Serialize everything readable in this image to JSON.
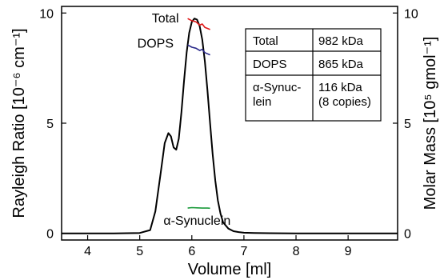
{
  "chart_data": {
    "type": "line",
    "xlabel": "Volume [ml]",
    "ylabel_left": "Rayleigh Ratio [10⁻⁶ cm⁻¹]",
    "ylabel_right": "Molar Mass [10⁵ gmol⁻¹]",
    "xlim": [
      3.5,
      9.95
    ],
    "ylim_left": [
      -0.3,
      10.3
    ],
    "ylim_right": [
      -0.3,
      10.3
    ],
    "x_ticks": [
      "4",
      "5",
      "6",
      "7",
      "8",
      "9"
    ],
    "y_ticks_left": [
      "0",
      "5",
      "10"
    ],
    "y_ticks_right": [
      "0",
      "5",
      "10"
    ],
    "series": [
      {
        "name": "Rayleigh ratio",
        "axis": "left",
        "color": "#000000",
        "x": [
          3.5,
          4.0,
          4.5,
          5.0,
          5.2,
          5.3,
          5.4,
          5.48,
          5.55,
          5.6,
          5.65,
          5.7,
          5.75,
          5.8,
          5.85,
          5.9,
          5.95,
          6.0,
          6.05,
          6.1,
          6.15,
          6.2,
          6.25,
          6.3,
          6.35,
          6.4,
          6.45,
          6.5,
          6.55,
          6.6,
          6.7,
          6.8,
          6.9,
          7.0,
          7.2,
          7.5,
          8.0,
          9.0,
          9.95
        ],
        "y": [
          0.0,
          0.0,
          0.0,
          0.02,
          0.15,
          1.0,
          2.7,
          4.1,
          4.55,
          4.4,
          3.9,
          3.8,
          4.3,
          5.5,
          6.9,
          8.2,
          9.1,
          9.6,
          9.75,
          9.7,
          9.4,
          8.8,
          7.8,
          6.5,
          5.0,
          3.6,
          2.4,
          1.5,
          0.9,
          0.5,
          0.22,
          0.1,
          0.06,
          0.03,
          0.02,
          0.01,
          0.0,
          0.0,
          0.0
        ]
      },
      {
        "name": "Total",
        "axis": "right",
        "color": "#e01818",
        "x": [
          5.92,
          6.0,
          6.08,
          6.15,
          6.2,
          6.25,
          6.3,
          6.35
        ],
        "y": [
          9.75,
          9.65,
          9.6,
          9.45,
          9.5,
          9.35,
          9.3,
          9.25
        ]
      },
      {
        "name": "DOPS",
        "axis": "right",
        "color": "#2a2a8a",
        "x": [
          5.92,
          6.0,
          6.08,
          6.15,
          6.2,
          6.25,
          6.3,
          6.35
        ],
        "y": [
          8.55,
          8.45,
          8.4,
          8.3,
          8.35,
          8.2,
          8.15,
          8.1
        ]
      },
      {
        "name": "α-Synuclein",
        "axis": "right",
        "color": "#1a9a3a",
        "x": [
          5.92,
          6.0,
          6.1,
          6.2,
          6.3,
          6.35
        ],
        "y": [
          1.15,
          1.17,
          1.16,
          1.15,
          1.15,
          1.14
        ]
      }
    ],
    "annotations": [
      {
        "text": "Total",
        "color": "#e01818",
        "x": 5.75,
        "y": 9.8
      },
      {
        "text": "DOPS",
        "color": "#2a2a8a",
        "x": 5.65,
        "y": 8.65
      },
      {
        "text": "α-Synuclein",
        "color": "#1a9a3a",
        "x": 6.1,
        "y": 0.6
      }
    ],
    "table": {
      "rows": [
        [
          "Total",
          "982 kDa"
        ],
        [
          "DOPS",
          "865 kDa"
        ],
        [
          "α-Synuc-\nlein",
          "116 kDa\n(8 copies)"
        ]
      ]
    }
  }
}
